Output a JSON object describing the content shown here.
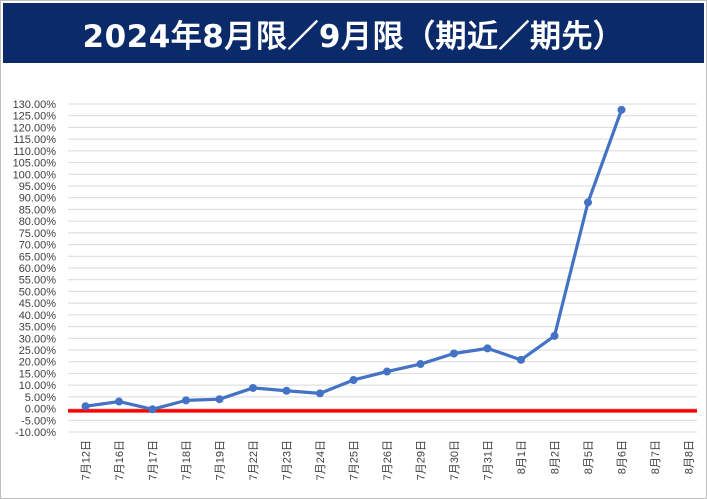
{
  "chart_data": {
    "type": "line",
    "title": "2024年8月限／9月限（期近／期先）",
    "categories": [
      "7月12日",
      "7月16日",
      "7月17日",
      "7月18日",
      "7月19日",
      "7月22日",
      "7月23日",
      "7月24日",
      "7月25日",
      "7月26日",
      "7月29日",
      "7月30日",
      "7月31日",
      "8月1日",
      "8月2日",
      "8月5日",
      "8月6日",
      "8月7日",
      "8月8日"
    ],
    "series": [
      {
        "values": [
          1.0,
          3.0,
          -0.3,
          3.5,
          4.0,
          8.8,
          7.6,
          6.5,
          12.2,
          15.8,
          19.0,
          23.5,
          25.7,
          20.8,
          31.0,
          88.0,
          127.5,
          null,
          null
        ],
        "color": "#4472c4"
      }
    ],
    "reference_line": {
      "value": -1.0,
      "color": "#ff0000"
    },
    "ylim": [
      -10,
      130
    ],
    "ytick_step": 5,
    "y_format": "percent_2dp",
    "grid": true,
    "legend": "none"
  }
}
